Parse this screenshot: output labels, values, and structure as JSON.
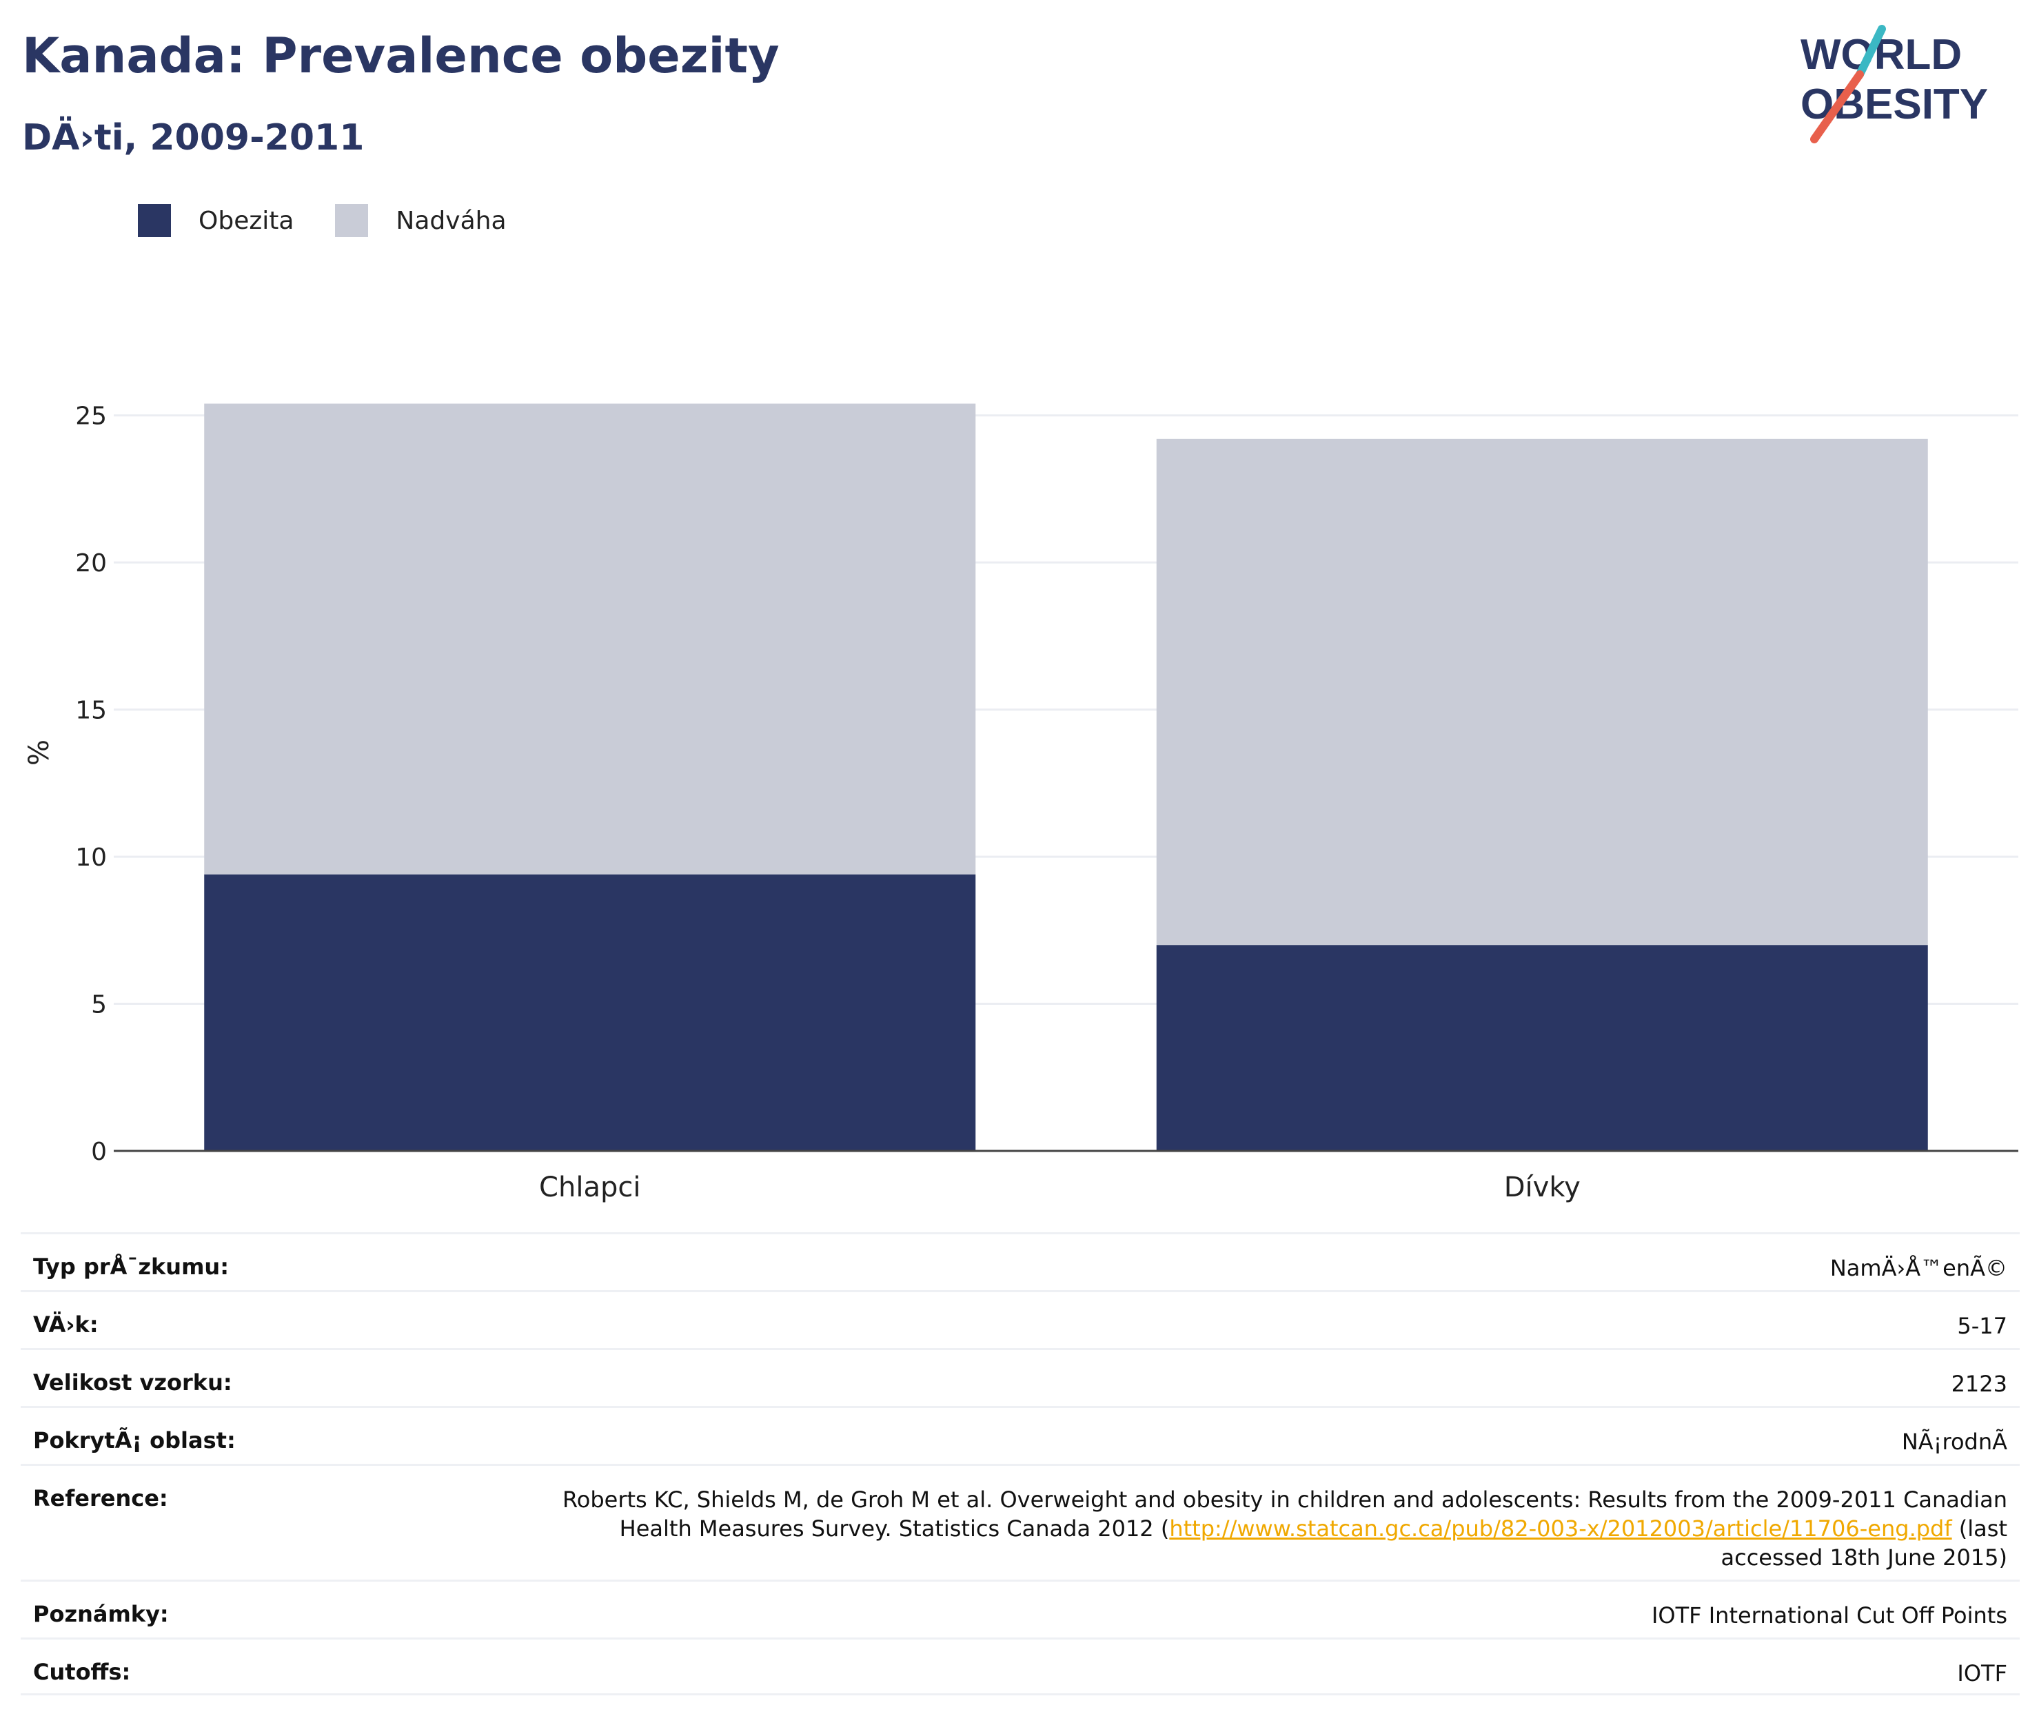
{
  "header": {
    "title": "Kanada: Prevalence obezity",
    "subtitle": "DÄ›ti, 2009-2011"
  },
  "logo": {
    "line1": "WORLD",
    "line2": "OBESITY",
    "colors": {
      "navy": "#2a3663",
      "teal": "#3bb8c4",
      "coral": "#e8604c"
    }
  },
  "legend": [
    {
      "label": "Obezita",
      "color": "#2a3663"
    },
    {
      "label": "Nadváha",
      "color": "#c9ccd7"
    }
  ],
  "chart_data": {
    "type": "bar",
    "stacked": true,
    "categories": [
      "Chlapci",
      "Dívky"
    ],
    "series": [
      {
        "name": "Obezita",
        "values": [
          9.4,
          7.0
        ],
        "color": "#2a3663"
      },
      {
        "name": "Nadváha",
        "values": [
          16.0,
          17.2
        ],
        "color": "#c9ccd7"
      }
    ],
    "ylabel": "%",
    "ylim": [
      0,
      26
    ],
    "yticks": [
      0,
      5,
      10,
      15,
      20,
      25
    ],
    "grid": true,
    "legend_position": "top-left"
  },
  "info": {
    "survey_type_label": "Typ prÅ¯zkumu:",
    "survey_type_value": "NamÄ›Å™enÃ©",
    "age_label": "VÄ›k:",
    "age_value": "5-17",
    "sample_label": "Velikost vzorku:",
    "sample_value": "2123",
    "area_label": "PokrytÃ¡ oblast:",
    "area_value": "NÃ¡rodnÃ",
    "reference_label": "Reference:",
    "reference_text_1": "Roberts KC, Shields M, de Groh M et al. Overweight and obesity in children and adolescents: Results from the 2009-2011 Canadian Health Measures Survey. Statistics Canada 2012 (",
    "reference_link": "http://www.statcan.gc.ca/pub/82-003-x/2012003/article/11706-eng.pdf",
    "reference_text_2": " (last accessed 18th June 2015)",
    "notes_label": "Poznámky:",
    "notes_value": "IOTF International Cut Off Points",
    "cutoffs_label": "Cutoffs:",
    "cutoffs_value": "IOTF"
  }
}
